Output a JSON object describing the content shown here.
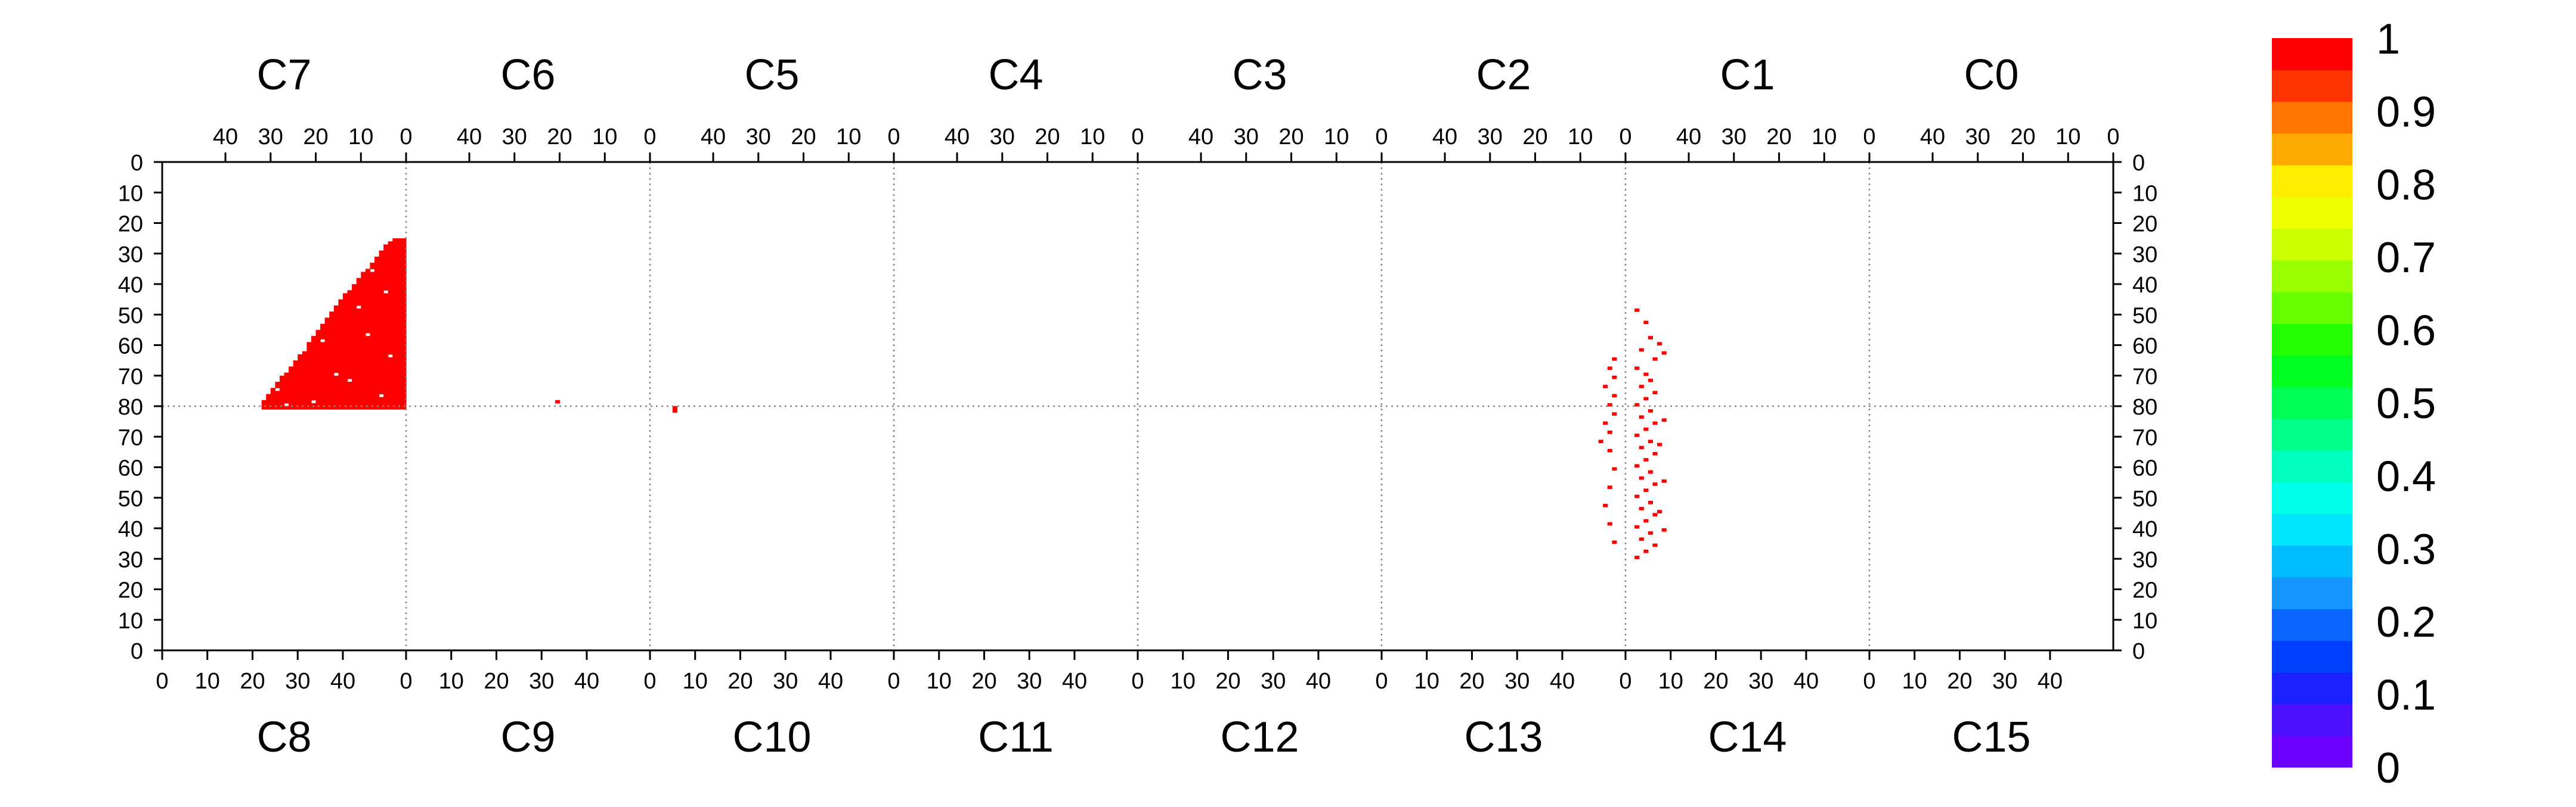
{
  "chart_data": {
    "type": "heatmap",
    "title": "",
    "top_chip_labels": [
      "C7",
      "C6",
      "C5",
      "C4",
      "C3",
      "C2",
      "C1",
      "C0"
    ],
    "bottom_chip_labels": [
      "C8",
      "C9",
      "C10",
      "C11",
      "C12",
      "C13",
      "C14",
      "C15"
    ],
    "top_tick_labels": [
      "40",
      "30",
      "20",
      "10",
      "0"
    ],
    "bottom_tick_labels": [
      "0",
      "10",
      "20",
      "30",
      "40"
    ],
    "left_tick_labels_top_half": [
      "0",
      "10",
      "20",
      "30",
      "40",
      "50",
      "60",
      "70",
      "80"
    ],
    "left_tick_labels_bottom_half": [
      "70",
      "60",
      "50",
      "40",
      "30",
      "20",
      "10",
      "0"
    ],
    "columns_per_chip": 54,
    "rows_per_half": 80,
    "zlim": [
      0,
      1
    ],
    "colorbar": {
      "labels": [
        "1",
        "0.9",
        "0.8",
        "0.7",
        "0.6",
        "0.5",
        "0.4",
        "0.3",
        "0.2",
        "0.1",
        "0"
      ],
      "colors": [
        "#6a00ff",
        "#4a10ff",
        "#1a22ff",
        "#0040ff",
        "#0c66ff",
        "#1495ff",
        "#00bbff",
        "#00e6ff",
        "#00ffe8",
        "#00ffbe",
        "#00ff88",
        "#00ff55",
        "#00ff1e",
        "#22ff00",
        "#66ff00",
        "#99ff00",
        "#ccff00",
        "#eeff00",
        "#ffee00",
        "#ffaa00",
        "#ff7700",
        "#ff3300",
        "#ff0000"
      ]
    },
    "grid": "dotted chip boundaries and half divider",
    "hit_color": "#ff0000",
    "hits": {
      "C7_cluster": {
        "chip": "C7",
        "row_ranges": [
          [
            25,
            25,
            0,
            2
          ],
          [
            26,
            26,
            0,
            3
          ],
          [
            27,
            27,
            0,
            4
          ],
          [
            28,
            28,
            0,
            4
          ],
          [
            29,
            29,
            0,
            5
          ],
          [
            30,
            30,
            0,
            5
          ],
          [
            31,
            31,
            0,
            6
          ],
          [
            32,
            32,
            0,
            6
          ],
          [
            33,
            33,
            0,
            7
          ],
          [
            34,
            34,
            0,
            7
          ],
          [
            35,
            35,
            0,
            8
          ],
          [
            36,
            36,
            0,
            9
          ],
          [
            37,
            37,
            0,
            9
          ],
          [
            38,
            38,
            0,
            10
          ],
          [
            39,
            39,
            0,
            10
          ],
          [
            40,
            40,
            0,
            11
          ],
          [
            41,
            41,
            0,
            11
          ],
          [
            42,
            42,
            0,
            12
          ],
          [
            43,
            43,
            0,
            13
          ],
          [
            44,
            44,
            0,
            13
          ],
          [
            45,
            45,
            0,
            14
          ],
          [
            46,
            46,
            0,
            14
          ],
          [
            47,
            47,
            0,
            15
          ],
          [
            48,
            48,
            0,
            15
          ],
          [
            49,
            49,
            0,
            16
          ],
          [
            50,
            50,
            0,
            16
          ],
          [
            51,
            51,
            0,
            17
          ],
          [
            52,
            52,
            0,
            17
          ],
          [
            53,
            53,
            0,
            18
          ],
          [
            54,
            54,
            0,
            18
          ],
          [
            55,
            55,
            0,
            19
          ],
          [
            56,
            56,
            0,
            19
          ],
          [
            57,
            57,
            0,
            20
          ],
          [
            58,
            58,
            0,
            20
          ],
          [
            59,
            59,
            0,
            21
          ],
          [
            60,
            60,
            0,
            21
          ],
          [
            61,
            61,
            0,
            22
          ],
          [
            62,
            62,
            0,
            22
          ],
          [
            63,
            63,
            0,
            23
          ],
          [
            64,
            64,
            0,
            23
          ],
          [
            65,
            65,
            0,
            24
          ],
          [
            66,
            66,
            0,
            24
          ],
          [
            67,
            67,
            0,
            25
          ],
          [
            68,
            68,
            0,
            25
          ],
          [
            69,
            69,
            0,
            26
          ],
          [
            70,
            70,
            0,
            27
          ],
          [
            71,
            71,
            0,
            27
          ],
          [
            72,
            72,
            0,
            28
          ],
          [
            73,
            73,
            0,
            28
          ],
          [
            74,
            74,
            0,
            29
          ],
          [
            75,
            75,
            0,
            29
          ],
          [
            76,
            76,
            0,
            30
          ],
          [
            77,
            77,
            0,
            30
          ],
          [
            78,
            78,
            0,
            31
          ],
          [
            79,
            80,
            0,
            31
          ]
        ],
        "holes": [
          [
            35,
            7
          ],
          [
            38,
            12
          ],
          [
            42,
            4
          ],
          [
            44,
            16
          ],
          [
            47,
            10
          ],
          [
            52,
            20
          ],
          [
            56,
            8
          ],
          [
            58,
            18
          ],
          [
            61,
            22
          ],
          [
            63,
            3
          ],
          [
            66,
            26
          ],
          [
            69,
            15
          ],
          [
            71,
            12
          ],
          [
            74,
            28
          ],
          [
            76,
            5
          ],
          [
            78,
            20
          ],
          [
            79,
            26
          ]
        ]
      },
      "C6_hits": [
        [
          78,
          20
        ]
      ],
      "C10_hits": [
        [
          80,
          5
        ],
        [
          81,
          5
        ]
      ],
      "C14_region_hits": [
        [
          48,
          2
        ],
        [
          52,
          4
        ],
        [
          57,
          5
        ],
        [
          61,
          3
        ],
        [
          64,
          6
        ],
        [
          67,
          2
        ],
        [
          69,
          4
        ],
        [
          71,
          5
        ],
        [
          73,
          3
        ],
        [
          75,
          6
        ],
        [
          77,
          4
        ],
        [
          79,
          2
        ],
        [
          81,
          5
        ],
        [
          83,
          3
        ],
        [
          85,
          6
        ],
        [
          87,
          4
        ],
        [
          89,
          2
        ],
        [
          91,
          5
        ],
        [
          93,
          3
        ],
        [
          95,
          6
        ],
        [
          97,
          4
        ],
        [
          99,
          2
        ],
        [
          101,
          5
        ],
        [
          103,
          3
        ],
        [
          105,
          6
        ],
        [
          107,
          4
        ],
        [
          109,
          2
        ],
        [
          111,
          5
        ],
        [
          113,
          3
        ],
        [
          115,
          6
        ],
        [
          117,
          4
        ],
        [
          119,
          2
        ],
        [
          121,
          5
        ],
        [
          123,
          3
        ],
        [
          125,
          6
        ],
        [
          127,
          4
        ],
        [
          129,
          2
        ],
        [
          64,
          -3
        ],
        [
          67,
          -4
        ],
        [
          70,
          -3
        ],
        [
          73,
          -5
        ],
        [
          76,
          -3
        ],
        [
          79,
          -4
        ],
        [
          82,
          -3
        ],
        [
          85,
          -5
        ],
        [
          88,
          -4
        ],
        [
          91,
          -6
        ],
        [
          94,
          -4
        ],
        [
          100,
          -3
        ],
        [
          106,
          -4
        ],
        [
          112,
          -5
        ],
        [
          118,
          -4
        ],
        [
          124,
          -3
        ],
        [
          59,
          7
        ],
        [
          62,
          8
        ],
        [
          84,
          8
        ],
        [
          92,
          7
        ],
        [
          104,
          8
        ],
        [
          114,
          7
        ],
        [
          120,
          8
        ]
      ]
    }
  }
}
